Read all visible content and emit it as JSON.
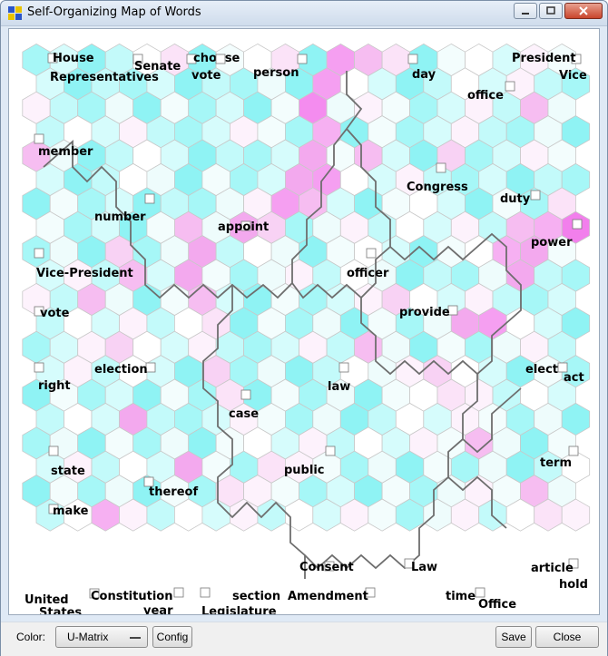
{
  "window": {
    "title": "Self-Organizing Map of Words"
  },
  "toolbar": {
    "color_label": "Color:",
    "color_selected": "U-Matrix",
    "config_label": "Config",
    "save_label": "Save",
    "close_label": "Close"
  },
  "colors": {
    "cyan": "#7ff5f5",
    "magenta": "#f27fec",
    "white": "#ffffff",
    "boundary": "#6e6e6e",
    "hex_border": "#c8c8c8"
  },
  "grid": {
    "cols": 20,
    "rows": 20,
    "colors": [
      "ccccwpcwwpcmppcwwcww",
      "ccccccccwcmwcccwcwcc",
      "wccwcwcccwmwwwccwcpw",
      "cwcwcccwwcmcwccwccwc",
      "pwccwcccccpwpccpccww",
      "cccwwcwccpmwcwcccccc",
      "cwcccccwwmpccwwccwcp",
      "wcccwpwppcwwcwcwcpmm",
      "cwcpcwpcwwcwwccwwmpw",
      "cwcpcpwcwwcwwcccwpcc",
      "wcpwcwpccwccwpwcwccc",
      "cwcwcwpcwcwcwcwpmwcc",
      "ccwpwcwcccwcpwcwcwwc",
      "cwcwccpcwccwwwpwccwc",
      "cwcccwcpcwcwcwwpwcwc",
      "cwcpcccwwcwccwcwwcwc",
      "cwcwcwcwwcwcwcwwpwcw",
      "cwcwcpwcpwwcwcwcwccw",
      "cwcwcwcpwwcccwcwwwpw",
      "cwmwcwcwcwcwwcwwcwpw"
    ]
  },
  "words": [
    {
      "text": "House"
    },
    {
      "text": "Representatives"
    },
    {
      "text": "Senate"
    },
    {
      "text": "choose"
    },
    {
      "text": "vote"
    },
    {
      "text": "person"
    },
    {
      "text": "day"
    },
    {
      "text": "President"
    },
    {
      "text": "Vice"
    },
    {
      "text": "office"
    },
    {
      "text": "member"
    },
    {
      "text": "Congress"
    },
    {
      "text": "duty"
    },
    {
      "text": "number"
    },
    {
      "text": "appoint"
    },
    {
      "text": "power"
    },
    {
      "text": "Vice-President"
    },
    {
      "text": "officer"
    },
    {
      "text": "vote"
    },
    {
      "text": "provide"
    },
    {
      "text": "election"
    },
    {
      "text": "elect"
    },
    {
      "text": "act"
    },
    {
      "text": "right"
    },
    {
      "text": "law"
    },
    {
      "text": "case"
    },
    {
      "text": "state"
    },
    {
      "text": "public"
    },
    {
      "text": "term"
    },
    {
      "text": "thereof"
    },
    {
      "text": "make"
    },
    {
      "text": "Consent"
    },
    {
      "text": "Law"
    },
    {
      "text": "article"
    },
    {
      "text": "hold"
    },
    {
      "text": "United"
    },
    {
      "text": "States"
    },
    {
      "text": "Constitution"
    },
    {
      "text": "year"
    },
    {
      "text": "section"
    },
    {
      "text": "Legislature"
    },
    {
      "text": "Amendment"
    },
    {
      "text": "time"
    },
    {
      "text": "Office"
    }
  ]
}
